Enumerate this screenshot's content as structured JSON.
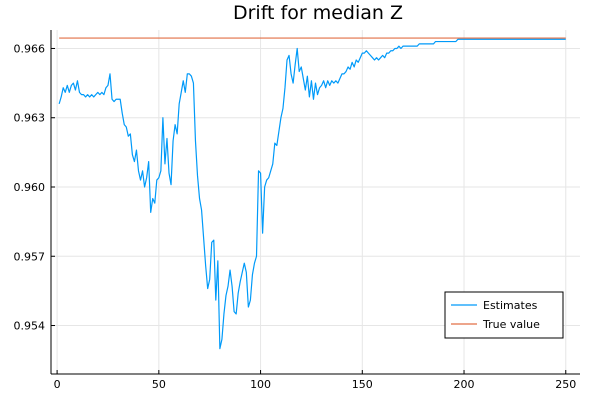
{
  "chart_data": {
    "type": "line",
    "title": "Drift for median Z",
    "xlabel": "",
    "ylabel": "",
    "xlim": [
      -3,
      257
    ],
    "ylim": [
      0.9519,
      0.9668
    ],
    "x_ticks": [
      0,
      50,
      100,
      150,
      200,
      250
    ],
    "y_ticks": [
      0.954,
      0.957,
      0.96,
      0.963,
      0.966
    ],
    "y_tick_labels": [
      "0.954",
      "0.957",
      "0.960",
      "0.963",
      "0.966"
    ],
    "grid": true,
    "legend_position": "bottom-right",
    "series": [
      {
        "name": "Estimates",
        "color": "#009af9",
        "points": [
          [
            1,
            0.9636
          ],
          [
            2,
            0.9639
          ],
          [
            3,
            0.9643
          ],
          [
            4,
            0.9641
          ],
          [
            5,
            0.9644
          ],
          [
            6,
            0.9641
          ],
          [
            7,
            0.9644
          ],
          [
            8,
            0.9645
          ],
          [
            9,
            0.9642
          ],
          [
            10,
            0.9646
          ],
          [
            11,
            0.9641
          ],
          [
            12,
            0.964
          ],
          [
            13,
            0.964
          ],
          [
            14,
            0.9639
          ],
          [
            15,
            0.964
          ],
          [
            16,
            0.9639
          ],
          [
            17,
            0.964
          ],
          [
            18,
            0.9639
          ],
          [
            19,
            0.964
          ],
          [
            20,
            0.9641
          ],
          [
            21,
            0.964
          ],
          [
            22,
            0.9641
          ],
          [
            23,
            0.964
          ],
          [
            24,
            0.9643
          ],
          [
            25,
            0.9644
          ],
          [
            26,
            0.9649
          ],
          [
            27,
            0.9638
          ],
          [
            28,
            0.9637
          ],
          [
            29,
            0.9638
          ],
          [
            30,
            0.9638
          ],
          [
            31,
            0.9638
          ],
          [
            32,
            0.9632
          ],
          [
            33,
            0.9627
          ],
          [
            34,
            0.9626
          ],
          [
            35,
            0.9622
          ],
          [
            36,
            0.9623
          ],
          [
            37,
            0.9614
          ],
          [
            38,
            0.9611
          ],
          [
            39,
            0.9616
          ],
          [
            40,
            0.9607
          ],
          [
            41,
            0.9603
          ],
          [
            42,
            0.9607
          ],
          [
            43,
            0.96
          ],
          [
            44,
            0.9604
          ],
          [
            45,
            0.9611
          ],
          [
            46,
            0.9589
          ],
          [
            47,
            0.9595
          ],
          [
            48,
            0.9593
          ],
          [
            49,
            0.9603
          ],
          [
            50,
            0.9604
          ],
          [
            51,
            0.9607
          ],
          [
            52,
            0.963
          ],
          [
            53,
            0.961
          ],
          [
            54,
            0.9621
          ],
          [
            55,
            0.9606
          ],
          [
            56,
            0.9601
          ],
          [
            57,
            0.962
          ],
          [
            58,
            0.9627
          ],
          [
            59,
            0.9623
          ],
          [
            60,
            0.9636
          ],
          [
            61,
            0.9641
          ],
          [
            62,
            0.9646
          ],
          [
            63,
            0.9641
          ],
          [
            64,
            0.9649
          ],
          [
            65,
            0.9649
          ],
          [
            66,
            0.9648
          ],
          [
            67,
            0.9645
          ],
          [
            68,
            0.962
          ],
          [
            69,
            0.9605
          ],
          [
            70,
            0.9595
          ],
          [
            71,
            0.959
          ],
          [
            72,
            0.9578
          ],
          [
            73,
            0.9566
          ],
          [
            74,
            0.9556
          ],
          [
            75,
            0.956
          ],
          [
            76,
            0.9576
          ],
          [
            77,
            0.9577
          ],
          [
            78,
            0.9551
          ],
          [
            79,
            0.9568
          ],
          [
            80,
            0.953
          ],
          [
            81,
            0.9534
          ],
          [
            82,
            0.9545
          ],
          [
            83,
            0.9553
          ],
          [
            84,
            0.9557
          ],
          [
            85,
            0.9564
          ],
          [
            86,
            0.9557
          ],
          [
            87,
            0.9546
          ],
          [
            88,
            0.9545
          ],
          [
            89,
            0.9554
          ],
          [
            90,
            0.9559
          ],
          [
            91,
            0.9563
          ],
          [
            92,
            0.9567
          ],
          [
            93,
            0.9563
          ],
          [
            94,
            0.9548
          ],
          [
            95,
            0.9551
          ],
          [
            96,
            0.9562
          ],
          [
            97,
            0.9567
          ],
          [
            98,
            0.957
          ],
          [
            99,
            0.9607
          ],
          [
            100,
            0.9606
          ],
          [
            101,
            0.958
          ],
          [
            102,
            0.96
          ],
          [
            103,
            0.9603
          ],
          [
            104,
            0.9604
          ],
          [
            105,
            0.9607
          ],
          [
            106,
            0.961
          ],
          [
            107,
            0.9619
          ],
          [
            108,
            0.9618
          ],
          [
            109,
            0.9624
          ],
          [
            110,
            0.963
          ],
          [
            111,
            0.9634
          ],
          [
            112,
            0.9643
          ],
          [
            113,
            0.9655
          ],
          [
            114,
            0.9657
          ],
          [
            115,
            0.9649
          ],
          [
            116,
            0.9645
          ],
          [
            117,
            0.9653
          ],
          [
            118,
            0.966
          ],
          [
            119,
            0.965
          ],
          [
            120,
            0.9652
          ],
          [
            121,
            0.9647
          ],
          [
            122,
            0.9642
          ],
          [
            123,
            0.9648
          ],
          [
            124,
            0.9639
          ],
          [
            125,
            0.9646
          ],
          [
            126,
            0.9638
          ],
          [
            127,
            0.9645
          ],
          [
            128,
            0.964
          ],
          [
            129,
            0.9643
          ],
          [
            130,
            0.9644
          ],
          [
            131,
            0.9646
          ],
          [
            132,
            0.9643
          ],
          [
            133,
            0.9646
          ],
          [
            134,
            0.9644
          ],
          [
            135,
            0.9646
          ],
          [
            136,
            0.9645
          ],
          [
            137,
            0.9646
          ],
          [
            138,
            0.9645
          ],
          [
            139,
            0.9647
          ],
          [
            140,
            0.9649
          ],
          [
            141,
            0.9649
          ],
          [
            142,
            0.965
          ],
          [
            143,
            0.9652
          ],
          [
            144,
            0.9651
          ],
          [
            145,
            0.9654
          ],
          [
            146,
            0.9652
          ],
          [
            147,
            0.9655
          ],
          [
            148,
            0.9654
          ],
          [
            149,
            0.9656
          ],
          [
            150,
            0.9658
          ],
          [
            151,
            0.9658
          ],
          [
            152,
            0.9659
          ],
          [
            153,
            0.9658
          ],
          [
            154,
            0.9657
          ],
          [
            155,
            0.9656
          ],
          [
            156,
            0.9655
          ],
          [
            157,
            0.9656
          ],
          [
            158,
            0.9655
          ],
          [
            159,
            0.9656
          ],
          [
            160,
            0.9657
          ],
          [
            161,
            0.9656
          ],
          [
            162,
            0.9658
          ],
          [
            163,
            0.9658
          ],
          [
            164,
            0.9659
          ],
          [
            165,
            0.9659
          ],
          [
            166,
            0.966
          ],
          [
            167,
            0.966
          ],
          [
            168,
            0.9661
          ],
          [
            169,
            0.966
          ],
          [
            170,
            0.9661
          ],
          [
            171,
            0.9661
          ],
          [
            172,
            0.9661
          ],
          [
            173,
            0.9661
          ],
          [
            174,
            0.9661
          ],
          [
            175,
            0.9661
          ],
          [
            176,
            0.9661
          ],
          [
            177,
            0.9661
          ],
          [
            178,
            0.9662
          ],
          [
            179,
            0.9662
          ],
          [
            180,
            0.9662
          ],
          [
            181,
            0.9662
          ],
          [
            182,
            0.9662
          ],
          [
            183,
            0.9662
          ],
          [
            184,
            0.9662
          ],
          [
            185,
            0.9662
          ],
          [
            186,
            0.9663
          ],
          [
            187,
            0.9663
          ],
          [
            188,
            0.9663
          ],
          [
            189,
            0.9663
          ],
          [
            190,
            0.9663
          ],
          [
            191,
            0.9663
          ],
          [
            192,
            0.9663
          ],
          [
            193,
            0.9663
          ],
          [
            194,
            0.9663
          ],
          [
            195,
            0.9663
          ],
          [
            196,
            0.9663
          ],
          [
            197,
            0.9664
          ],
          [
            198,
            0.9664
          ],
          [
            199,
            0.9664
          ],
          [
            200,
            0.9664
          ],
          [
            205,
            0.9664
          ],
          [
            210,
            0.9664
          ],
          [
            215,
            0.9664
          ],
          [
            220,
            0.9664
          ],
          [
            225,
            0.9664
          ],
          [
            230,
            0.9664
          ],
          [
            235,
            0.9664
          ],
          [
            240,
            0.9664
          ],
          [
            245,
            0.9664
          ],
          [
            250,
            0.9664
          ]
        ]
      },
      {
        "name": "True value",
        "color": "#e26f46",
        "points": [
          [
            1,
            0.96645
          ],
          [
            250,
            0.96645
          ]
        ]
      }
    ]
  }
}
